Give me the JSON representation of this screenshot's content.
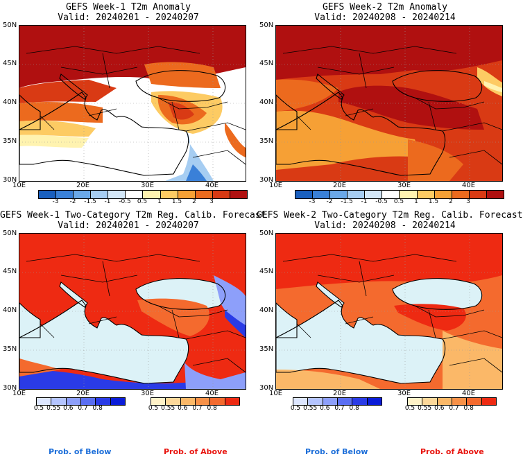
{
  "panels": [
    {
      "title": "GEFS Week-1 T2m Anomaly",
      "valid": "Valid: 20240201 - 20240207"
    },
    {
      "title": "GEFS Week-2 T2m Anomaly",
      "valid": "Valid: 20240208 - 20240214"
    },
    {
      "title": "GEFS Week-1 Two-Category T2m Reg. Calib. Forecast",
      "valid": "Valid: 20240201 - 20240207"
    },
    {
      "title": "GEFS Week-2 Two-Category T2m Reg. Calib. Forecast",
      "valid": "Valid: 20240208 - 20240214"
    }
  ],
  "lat_labels": [
    "50N",
    "45N",
    "40N",
    "35N",
    "30N"
  ],
  "lon_labels": [
    "10E",
    "20E",
    "30E",
    "40E"
  ],
  "anomaly_colorbar": {
    "labels": [
      "-3",
      "-2",
      "-1.5",
      "-1",
      "-0.5",
      "0.5",
      "1",
      "1.5",
      "2",
      "3"
    ],
    "colors": [
      "#1a5fbf",
      "#3a80d8",
      "#6aa8e8",
      "#a6cdf2",
      "#d3e7f8",
      "#ffffff",
      "#fff3b0",
      "#fdcb63",
      "#f6a035",
      "#ec6a1e",
      "#d93a14",
      "#b01010"
    ]
  },
  "prob_below": {
    "labels": [
      "0.5",
      "0.55",
      "0.6",
      "0.7",
      "0.8"
    ],
    "colors": [
      "#dde6ff",
      "#b4c4ff",
      "#8d9ffa",
      "#5a6ef2",
      "#2a3be6",
      "#0a1cd8"
    ],
    "caption": "Prob. of Below",
    "caption_color": "#1e6fd9"
  },
  "prob_above": {
    "labels": [
      "0.5",
      "0.55",
      "0.6",
      "0.7",
      "0.8"
    ],
    "colors": [
      "#fff2c8",
      "#fdd89a",
      "#fbb868",
      "#f79148",
      "#f46a2e",
      "#ee2a12"
    ],
    "caption": "Prob. of Above",
    "caption_color": "#e8150f"
  },
  "map_colors": {
    "sea": "#dcf2f7",
    "above_strong": "#ee2a12",
    "above_mid": "#f46a2e",
    "above_weak": "#fbb868",
    "below_strong": "#2a3be6",
    "below_mid": "#8d9ffa",
    "anom_high": "#b01010",
    "anom_hot": "#d93a14",
    "anom_warm": "#ec6a1e",
    "anom_mild": "#f6a035",
    "anom_yellow": "#fdcb63",
    "anom_pale": "#fff3b0",
    "anom_cool": "#a6cdf2",
    "anom_cold": "#3a80d8",
    "coast": "#000000"
  }
}
